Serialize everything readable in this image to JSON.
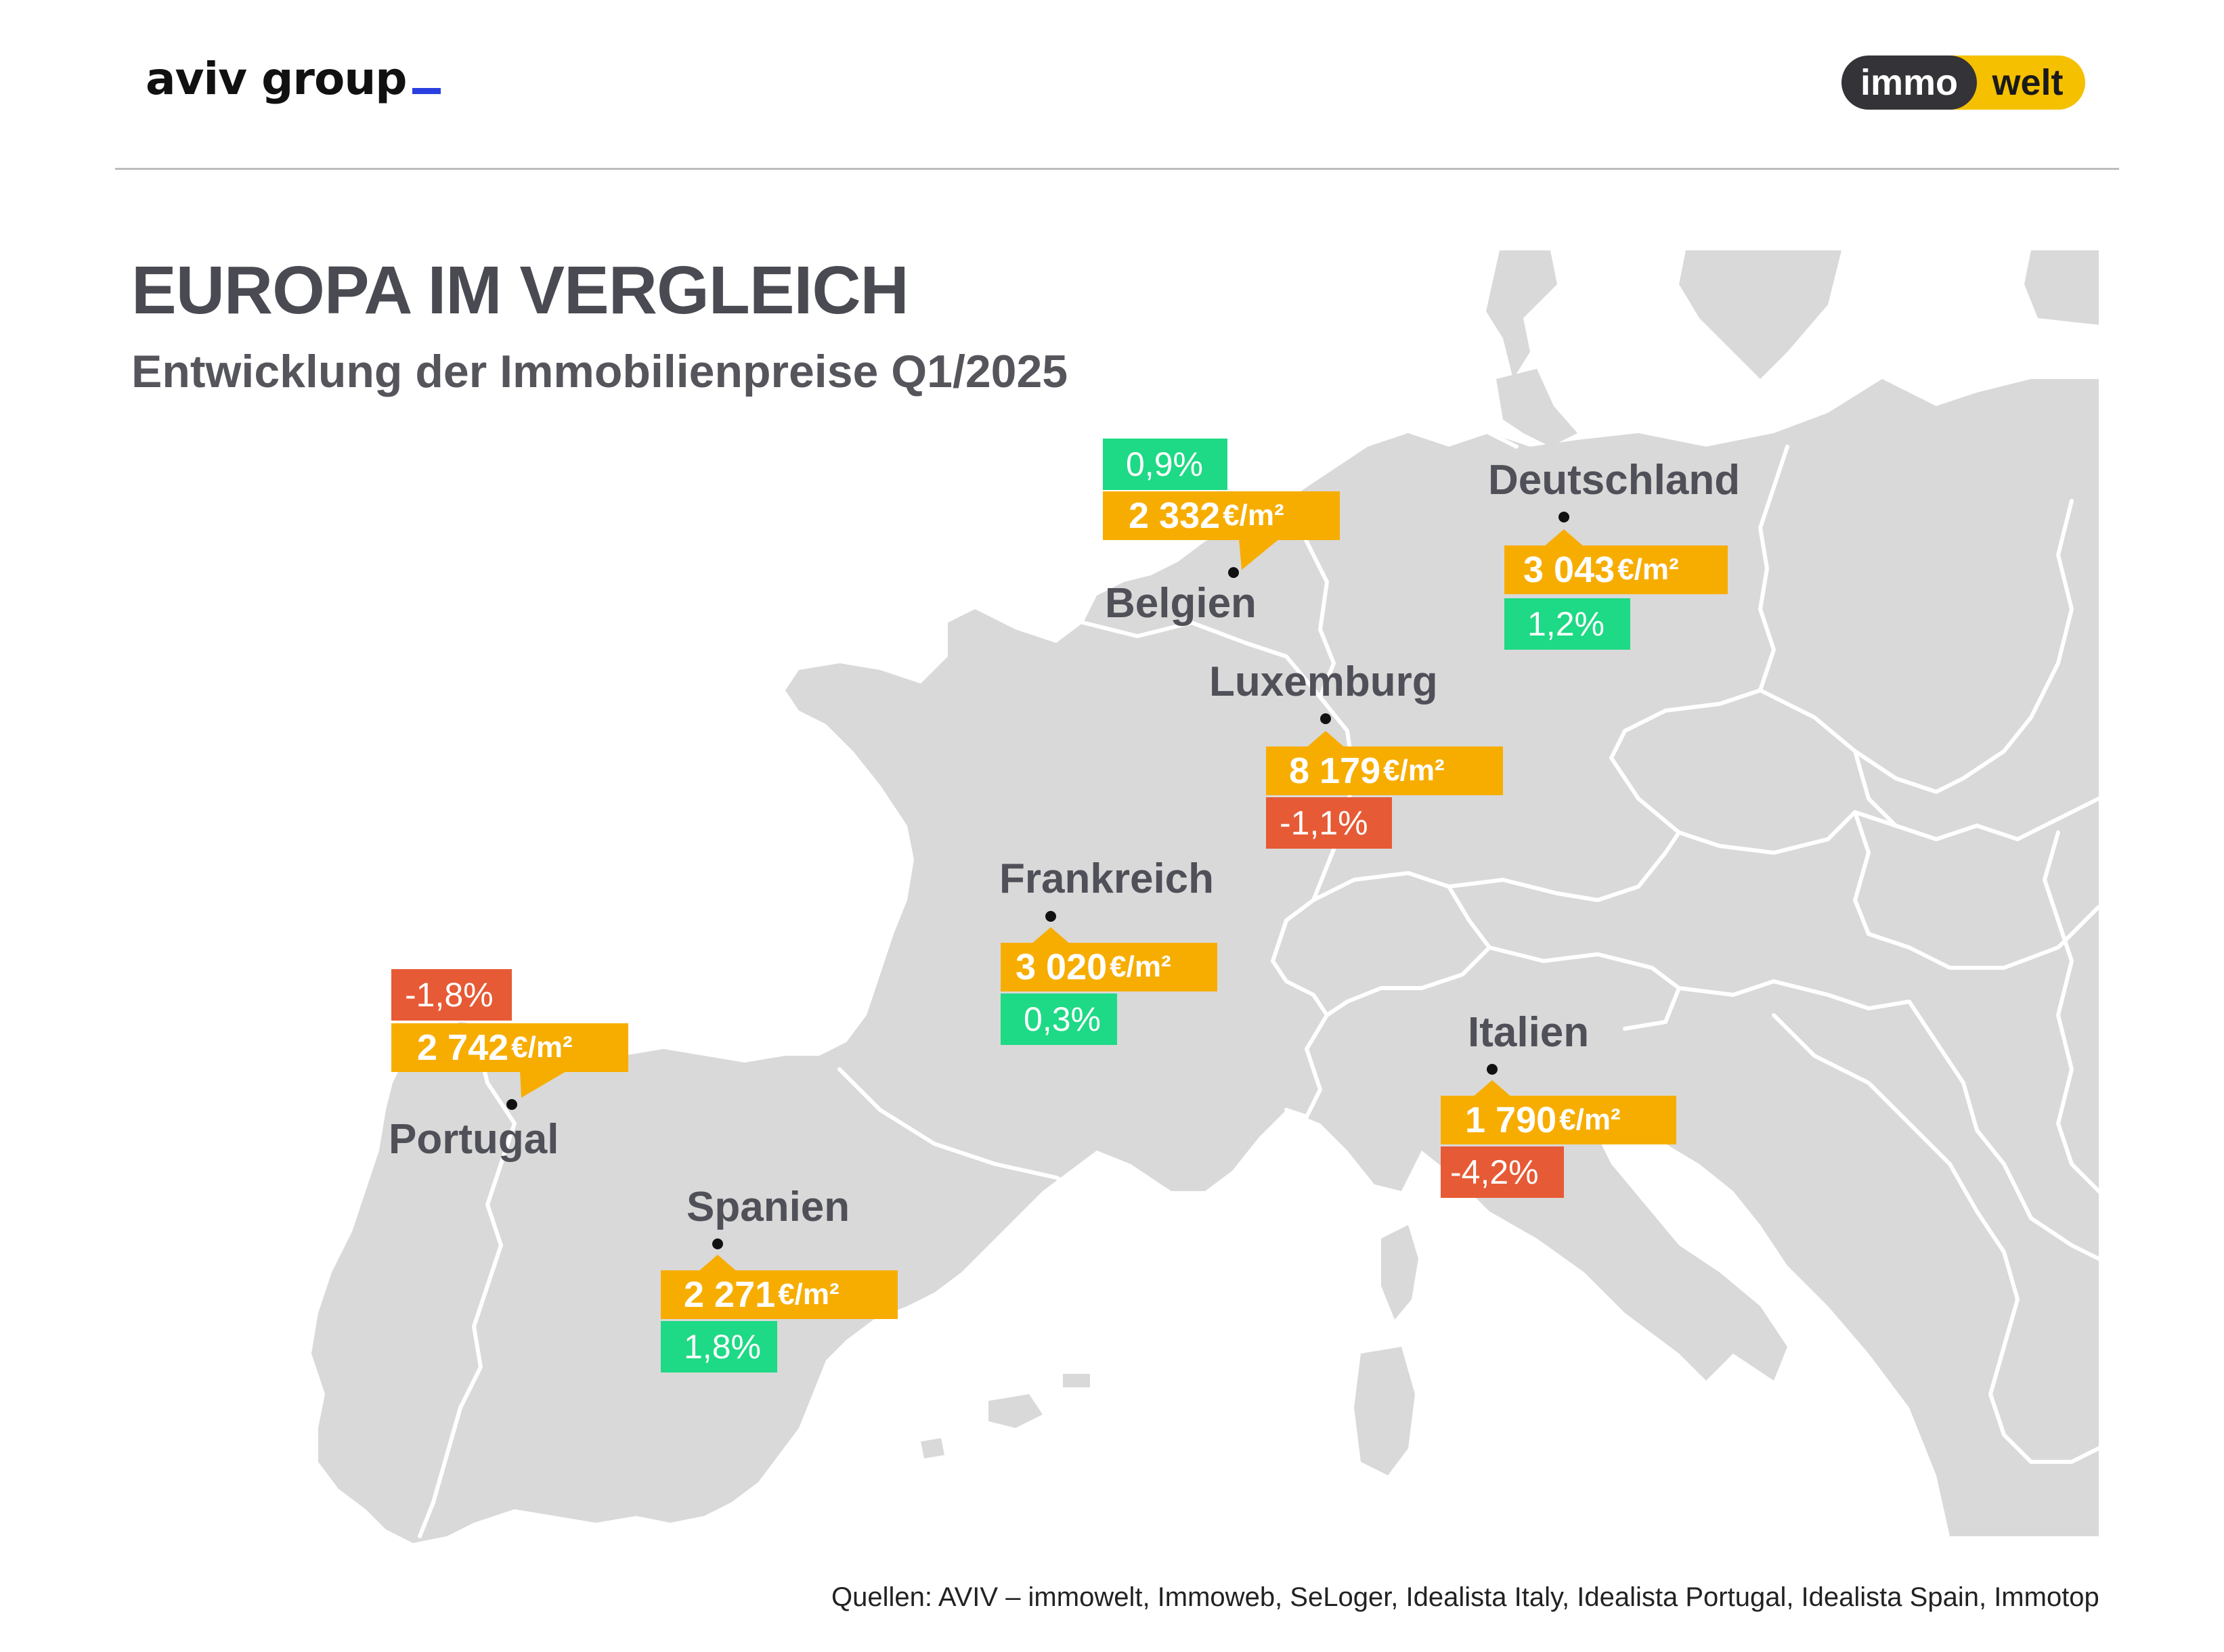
{
  "header": {
    "logo_left": "aviv group",
    "logo_right_left": "immo",
    "logo_right_right": "welt"
  },
  "title": "EUROPA IM VERGLEICH",
  "subtitle": "Entwicklung der Immobilienpreise Q1/2025",
  "countries": {
    "belgien": {
      "name": "Belgien",
      "price": "2 332",
      "unit": "€/m²",
      "change": "0,9%",
      "trend": "up"
    },
    "deutschland": {
      "name": "Deutschland",
      "price": "3 043",
      "unit": "€/m²",
      "change": "1,2%",
      "trend": "up"
    },
    "luxemburg": {
      "name": "Luxemburg",
      "price": "8 179",
      "unit": "€/m²",
      "change": "-1,1%",
      "trend": "down"
    },
    "frankreich": {
      "name": "Frankreich",
      "price": "3 020",
      "unit": "€/m²",
      "change": "0,3%",
      "trend": "up"
    },
    "portugal": {
      "name": "Portugal",
      "price": "2 742",
      "unit": "€/m²",
      "change": "-1,8%",
      "trend": "down"
    },
    "spanien": {
      "name": "Spanien",
      "price": "2 271",
      "unit": "€/m²",
      "change": "1,8%",
      "trend": "up"
    },
    "italien": {
      "name": "Italien",
      "price": "1 790",
      "unit": "€/m²",
      "change": "-4,2%",
      "trend": "down"
    }
  },
  "colors": {
    "price_box": "#f7ad00",
    "up": "#1ed985",
    "down": "#e65a36",
    "land": "#d9d9d9",
    "borders": "#ffffff"
  },
  "source": "Quellen: AVIV – immowelt, Immoweb, SeLoger, Idealista Italy, Idealista Portugal, Idealista Spain, Immotop"
}
